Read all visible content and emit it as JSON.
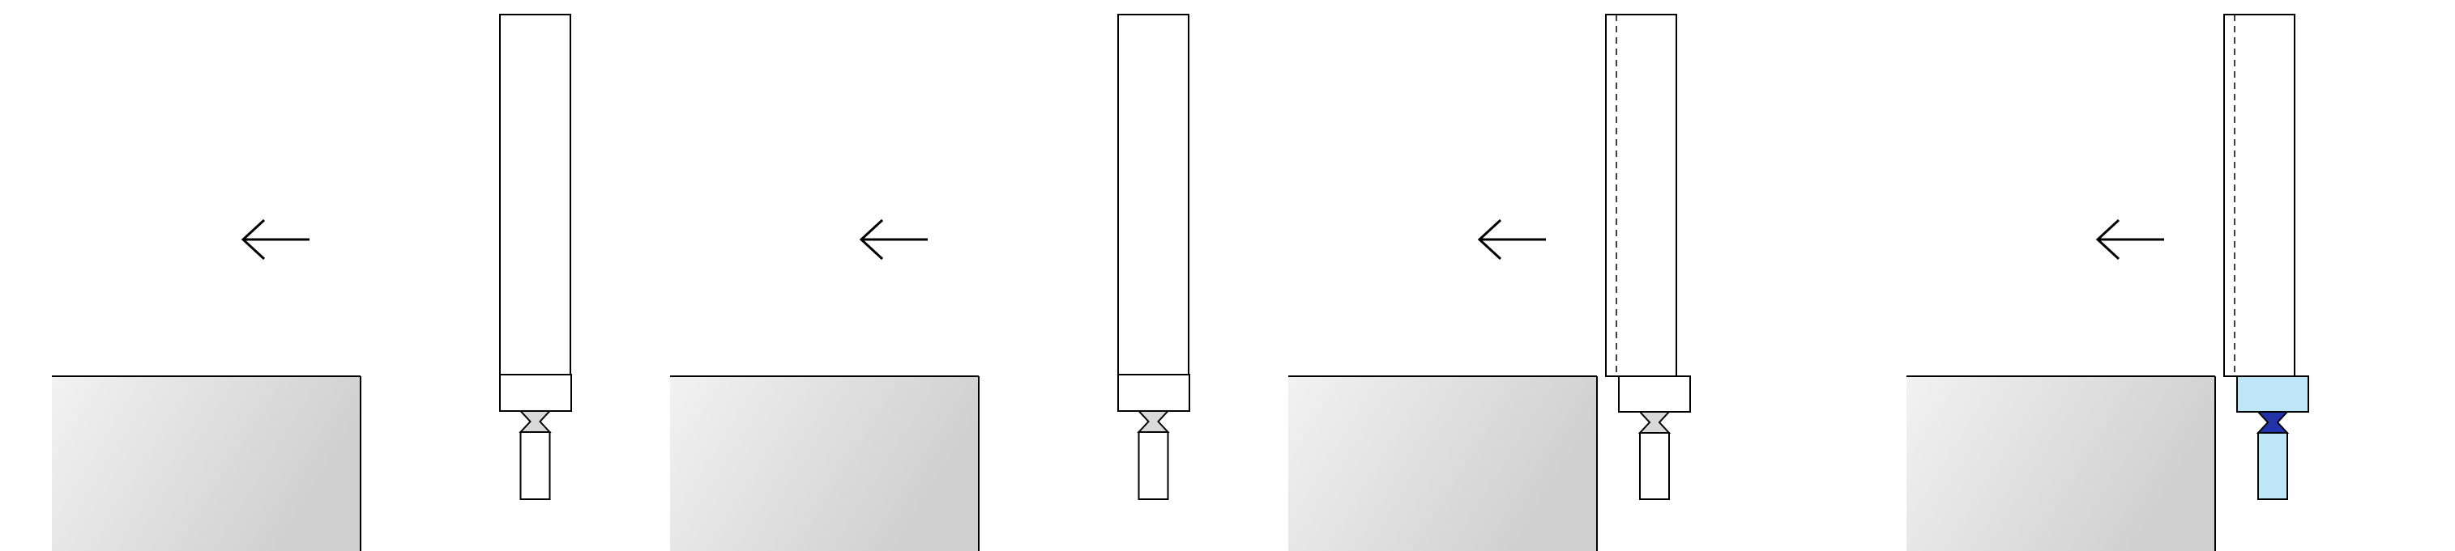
{
  "diagram": {
    "panel_count": 4,
    "motion_arrow": "arrow-left-icon",
    "panels": [
      {
        "step": 1,
        "tool_in_contact": false,
        "tip_highlighted": false,
        "dashed_guide": false
      },
      {
        "step": 2,
        "tool_in_contact": false,
        "tip_highlighted": false,
        "dashed_guide": false
      },
      {
        "step": 3,
        "tool_in_contact": true,
        "tip_highlighted": false,
        "dashed_guide": true
      },
      {
        "step": 4,
        "tool_in_contact": true,
        "tip_highlighted": true,
        "dashed_guide": true
      }
    ]
  },
  "colors": {
    "stroke": "#000000",
    "tool_fill": "#ffffff",
    "block_light": "#f2f2f2",
    "block_dark": "#cfcfd0",
    "highlight_fill": "#bfe6f7",
    "highlight_neck": "#2233aa",
    "neck_gray": "#d9d9d9"
  }
}
